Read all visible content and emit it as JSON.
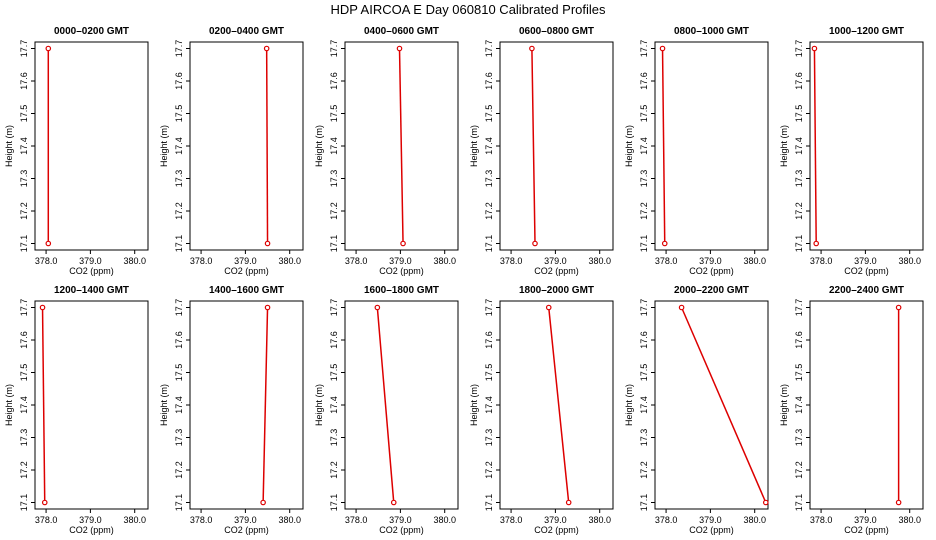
{
  "title": "HDP AIRCOA E  Day 060810  Calibrated Profiles",
  "chart_data": {
    "type": "line",
    "shared": {
      "xlabel": "CO2 (ppm)",
      "ylabel": "Height (m)",
      "xticks": [
        "378.0",
        "379.0",
        "380.0"
      ],
      "xtick_values": [
        378.0,
        379.0,
        380.0
      ],
      "yticks": [
        "17.1",
        "17.2",
        "17.3",
        "17.4",
        "17.5",
        "17.6",
        "17.7"
      ],
      "ytick_values": [
        17.1,
        17.2,
        17.3,
        17.4,
        17.5,
        17.6,
        17.7
      ],
      "xlim": [
        377.75,
        380.3
      ],
      "ylim": [
        17.08,
        17.72
      ],
      "line_color": "#dd0000",
      "point_color": "#dd0000",
      "y": [
        17.7,
        17.1
      ]
    },
    "panels": [
      {
        "title": "0000–0200 GMT",
        "x": [
          378.05,
          378.05
        ]
      },
      {
        "title": "0200–0400 GMT",
        "x": [
          379.48,
          379.5
        ]
      },
      {
        "title": "0400–0600 GMT",
        "x": [
          378.98,
          379.06
        ]
      },
      {
        "title": "0600–0800 GMT",
        "x": [
          378.47,
          378.54
        ]
      },
      {
        "title": "0800–1000 GMT",
        "x": [
          377.92,
          377.97
        ]
      },
      {
        "title": "1000–1200 GMT",
        "x": [
          377.85,
          377.89
        ]
      },
      {
        "title": "1200–1400 GMT",
        "x": [
          377.92,
          377.97
        ]
      },
      {
        "title": "1400–1600 GMT",
        "x": [
          379.5,
          379.4
        ]
      },
      {
        "title": "1600–1800 GMT",
        "x": [
          378.48,
          378.85
        ]
      },
      {
        "title": "1800–2000 GMT",
        "x": [
          378.85,
          379.3
        ]
      },
      {
        "title": "2000–2200 GMT",
        "x": [
          378.35,
          380.25
        ]
      },
      {
        "title": "2200–2400 GMT",
        "x": [
          379.75,
          379.75
        ]
      }
    ]
  }
}
